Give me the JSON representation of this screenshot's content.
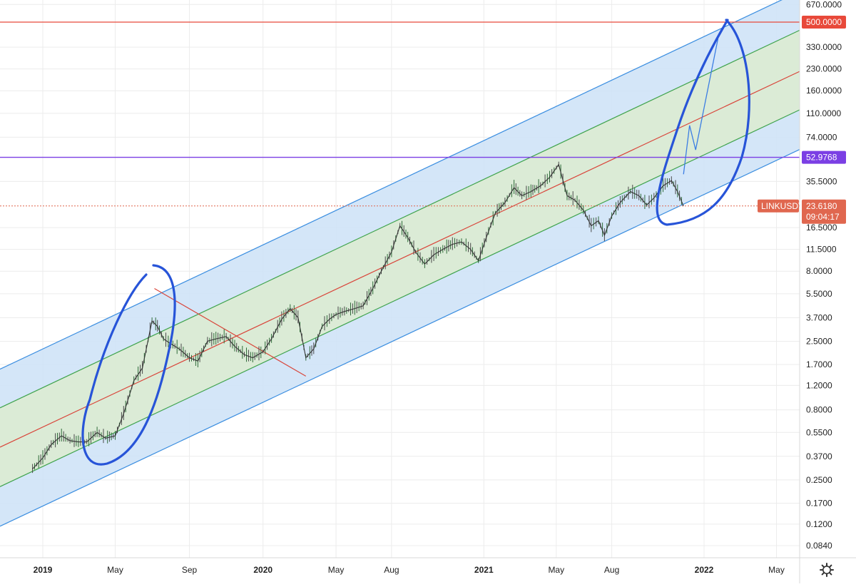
{
  "chart_data": {
    "type": "candlestick",
    "title": "",
    "symbol": "LINKUSDT",
    "scale": "log",
    "grid": true,
    "ylim": [
      0.06,
      800
    ],
    "y_ticks": [
      "670.0000",
      "330.0000",
      "230.0000",
      "160.0000",
      "110.0000",
      "74.0000",
      "35.5000",
      "16.5000",
      "11.5000",
      "8.0000",
      "5.5000",
      "3.7000",
      "2.5000",
      "1.7000",
      "1.2000",
      "0.8000",
      "0.5500",
      "0.3700",
      "0.2500",
      "0.1700",
      "0.1200",
      "0.0840"
    ],
    "x_ticks": [
      {
        "label": "2019",
        "date": "2019-01-01"
      },
      {
        "label": "May",
        "date": "2019-05-01"
      },
      {
        "label": "Sep",
        "date": "2019-09-01"
      },
      {
        "label": "2020",
        "date": "2020-01-01"
      },
      {
        "label": "May",
        "date": "2020-05-01"
      },
      {
        "label": "Aug",
        "date": "2020-08-01"
      },
      {
        "label": "2021",
        "date": "2021-01-01"
      },
      {
        "label": "May",
        "date": "2021-05-01"
      },
      {
        "label": "Aug",
        "date": "2021-08-01"
      },
      {
        "label": "2022",
        "date": "2022-01-01"
      },
      {
        "label": "May",
        "date": "2022-05-01"
      }
    ],
    "price_line": {
      "value": 23.618,
      "label": "LINKUSDT",
      "price": "23.6180",
      "countdown": "09:04:17",
      "color": "#e0674f"
    },
    "horizontal_levels": [
      {
        "value": 500,
        "label": "500.0000",
        "color": "#e8493a"
      },
      {
        "value": 52.9768,
        "label": "52.9768",
        "color": "#7b3fe4"
      }
    ],
    "channel": {
      "anchor_dates": [
        "2018-12-01",
        "2022-05-31"
      ],
      "upper": [
        1.9,
        800
      ],
      "inner_upper": [
        1.0,
        420
      ],
      "mid": [
        0.52,
        212
      ],
      "inner_lower": [
        0.27,
        112
      ],
      "lower": [
        0.14,
        58
      ],
      "colors": {
        "outer_fill": "#cfe3f7",
        "inner_fill": "#dcebd2",
        "outer_line": "#3b8ee0",
        "inner_line": "#3fa34d",
        "mid_line": "#d9453a"
      }
    },
    "diagonal_line": {
      "from": [
        "2019-07-05",
        6.0
      ],
      "to": [
        "2020-03-12",
        1.4
      ],
      "color": "#d9453a"
    },
    "projection": {
      "points": [
        [
          "2021-11-28",
          40
        ],
        [
          "2021-12-08",
          90
        ],
        [
          "2021-12-18",
          60
        ],
        [
          "2022-01-24",
          380
        ]
      ],
      "color": "#3b7de3"
    },
    "series": [
      {
        "values": [
          [
            "2018-12-15",
            0.3
          ],
          [
            "2019-01-01",
            0.36
          ],
          [
            "2019-01-15",
            0.45
          ],
          [
            "2019-02-01",
            0.52
          ],
          [
            "2019-02-15",
            0.48
          ],
          [
            "2019-03-01",
            0.47
          ],
          [
            "2019-03-15",
            0.47
          ],
          [
            "2019-04-01",
            0.55
          ],
          [
            "2019-04-15",
            0.5
          ],
          [
            "2019-05-01",
            0.52
          ],
          [
            "2019-05-15",
            0.75
          ],
          [
            "2019-06-01",
            1.3
          ],
          [
            "2019-06-15",
            1.6
          ],
          [
            "2019-07-01",
            3.5
          ],
          [
            "2019-07-10",
            3.2
          ],
          [
            "2019-07-20",
            2.6
          ],
          [
            "2019-08-01",
            2.4
          ],
          [
            "2019-08-15",
            2.2
          ],
          [
            "2019-09-01",
            1.9
          ],
          [
            "2019-09-15",
            1.8
          ],
          [
            "2019-10-01",
            2.5
          ],
          [
            "2019-10-15",
            2.6
          ],
          [
            "2019-11-01",
            2.7
          ],
          [
            "2019-11-15",
            2.3
          ],
          [
            "2019-12-01",
            2.0
          ],
          [
            "2019-12-15",
            1.9
          ],
          [
            "2020-01-01",
            2.1
          ],
          [
            "2020-01-15",
            2.6
          ],
          [
            "2020-02-01",
            3.6
          ],
          [
            "2020-02-15",
            4.3
          ],
          [
            "2020-02-28",
            3.7
          ],
          [
            "2020-03-12",
            1.9
          ],
          [
            "2020-03-25",
            2.2
          ],
          [
            "2020-04-08",
            3.2
          ],
          [
            "2020-04-20",
            3.6
          ],
          [
            "2020-05-01",
            3.9
          ],
          [
            "2020-05-15",
            4.1
          ],
          [
            "2020-06-01",
            4.3
          ],
          [
            "2020-06-15",
            4.5
          ],
          [
            "2020-07-01",
            6.0
          ],
          [
            "2020-07-15",
            8.0
          ],
          [
            "2020-08-01",
            11.0
          ],
          [
            "2020-08-15",
            17.0
          ],
          [
            "2020-08-28",
            14.0
          ],
          [
            "2020-09-10",
            11.0
          ],
          [
            "2020-09-25",
            9.0
          ],
          [
            "2020-10-10",
            10.5
          ],
          [
            "2020-10-25",
            11.5
          ],
          [
            "2020-11-10",
            12.5
          ],
          [
            "2020-11-25",
            13.0
          ],
          [
            "2020-12-10",
            11.5
          ],
          [
            "2020-12-23",
            9.5
          ],
          [
            "2021-01-05",
            14.0
          ],
          [
            "2021-01-20",
            21.0
          ],
          [
            "2021-02-05",
            25.0
          ],
          [
            "2021-02-20",
            32.0
          ],
          [
            "2021-03-05",
            28.0
          ],
          [
            "2021-03-20",
            30.0
          ],
          [
            "2021-04-05",
            33.0
          ],
          [
            "2021-04-20",
            38.0
          ],
          [
            "2021-05-05",
            47.0
          ],
          [
            "2021-05-19",
            28.0
          ],
          [
            "2021-06-01",
            26.0
          ],
          [
            "2021-06-15",
            22.0
          ],
          [
            "2021-06-28",
            17.0
          ],
          [
            "2021-07-10",
            18.5
          ],
          [
            "2021-07-20",
            14.5
          ],
          [
            "2021-08-01",
            20.0
          ],
          [
            "2021-08-15",
            25.0
          ],
          [
            "2021-09-01",
            30.0
          ],
          [
            "2021-09-15",
            28.0
          ],
          [
            "2021-09-28",
            24.0
          ],
          [
            "2021-10-10",
            27.0
          ],
          [
            "2021-10-25",
            33.0
          ],
          [
            "2021-11-08",
            36.0
          ],
          [
            "2021-11-18",
            30.0
          ],
          [
            "2021-11-28",
            23.6
          ]
        ]
      }
    ]
  },
  "ui": {
    "gear_icon": "settings-gear-icon"
  }
}
